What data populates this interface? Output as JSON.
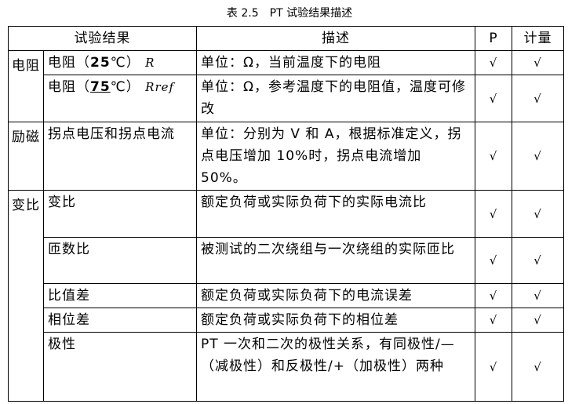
{
  "caption": "表 2.5　PT 试验结果描述",
  "headers": {
    "result": "试验结果",
    "desc": "描述",
    "p": "P",
    "meter": "计量"
  },
  "check": "√",
  "groups": {
    "resistance": "电阻",
    "excitation": "励磁",
    "ratio": "变比"
  },
  "rows": [
    {
      "name_pre": "电阻（",
      "name_num": "25",
      "name_post": "℃）",
      "var": "R",
      "desc": "单位：Ω，当前温度下的电阻"
    },
    {
      "name_pre": "电阻（",
      "name_num": "75",
      "name_post": "℃）",
      "var": "Rref",
      "desc": "单位：Ω，参考温度下的电阻值，温度可修改"
    },
    {
      "name": "拐点电压和拐点电流",
      "desc": "单位：分别为 V 和 A，根据标准定义，拐点电压增加 10%时，拐点电流增加 50%。"
    },
    {
      "name": "变比",
      "desc": "额定负荷或实际负荷下的实际电流比"
    },
    {
      "name": "匝数比",
      "desc": "被测试的二次绕组与一次绕组的实际匝比"
    },
    {
      "name": "比值差",
      "desc": "额定负荷或实际负荷下的电流误差"
    },
    {
      "name": "相位差",
      "desc": "额定负荷或实际负荷下的相位差"
    },
    {
      "name": "极性",
      "desc": "PT 一次和二次的极性关系，有同极性/—（减极性）和反极性/+（加极性）两种"
    }
  ]
}
